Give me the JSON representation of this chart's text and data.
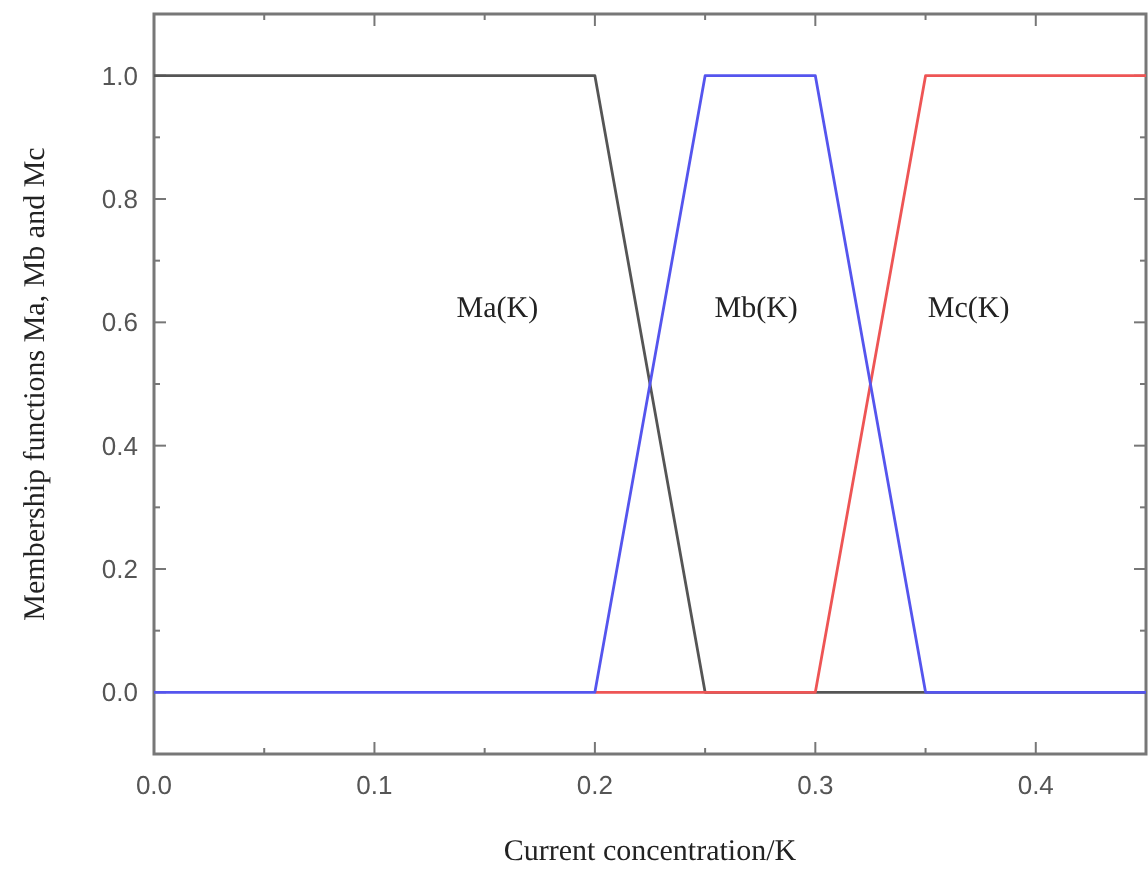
{
  "chart_data": {
    "type": "line",
    "xlabel": "Current concentration/K",
    "ylabel": "Membership functions Ma, Mb and Mc",
    "xlim": [
      0,
      0.45
    ],
    "ylim": [
      -0.1,
      1.1
    ],
    "xticks": [
      "0.0",
      {
        "value": 0.05,
        "label": null
      },
      {
        "value": 0.1,
        "label": "0.1"
      },
      {
        "value": 0.15,
        "label": null
      },
      {
        "value": 0.2,
        "label": "0.2"
      },
      {
        "value": 0.25,
        "label": null
      },
      {
        "value": 0.3,
        "label": "0.3"
      },
      {
        "value": 0.35,
        "label": null
      },
      {
        "value": 0.4,
        "label": "0.4"
      }
    ],
    "yticks": [
      {
        "value": 0,
        "label": "0.0"
      },
      {
        "value": 0.1,
        "label": null
      },
      {
        "value": 0.2,
        "label": "0.2"
      },
      {
        "value": 0.3,
        "label": null
      },
      {
        "value": 0.4,
        "label": "0.4"
      },
      {
        "value": 0.5,
        "label": null
      },
      {
        "value": 0.6,
        "label": "0.6"
      },
      {
        "value": 0.7,
        "label": null
      },
      {
        "value": 0.8,
        "label": "0.8"
      },
      {
        "value": 0.9,
        "label": null
      },
      {
        "value": 1,
        "label": "1.0"
      }
    ],
    "series": [
      {
        "color": "#555555",
        "x": [
          0,
          0.2,
          0.25,
          0.45
        ],
        "values": [
          1,
          1,
          0,
          0
        ]
      },
      {
        "color": "#ee5555",
        "x": [
          0.2,
          0.3,
          0.35,
          0.45
        ],
        "values": [
          0,
          0,
          1,
          1
        ]
      },
      {
        "color": "#5555ee",
        "x": [
          0,
          0.2,
          0.25,
          0.3,
          0.35,
          0.45
        ],
        "values": [
          0,
          0,
          1,
          1,
          0,
          0
        ]
      }
    ],
    "annotations": [
      "Ma(K)",
      "Mb(K)",
      "Mc(K)"
    ],
    "grid": false,
    "marker": "none",
    "line_style": "solid"
  }
}
